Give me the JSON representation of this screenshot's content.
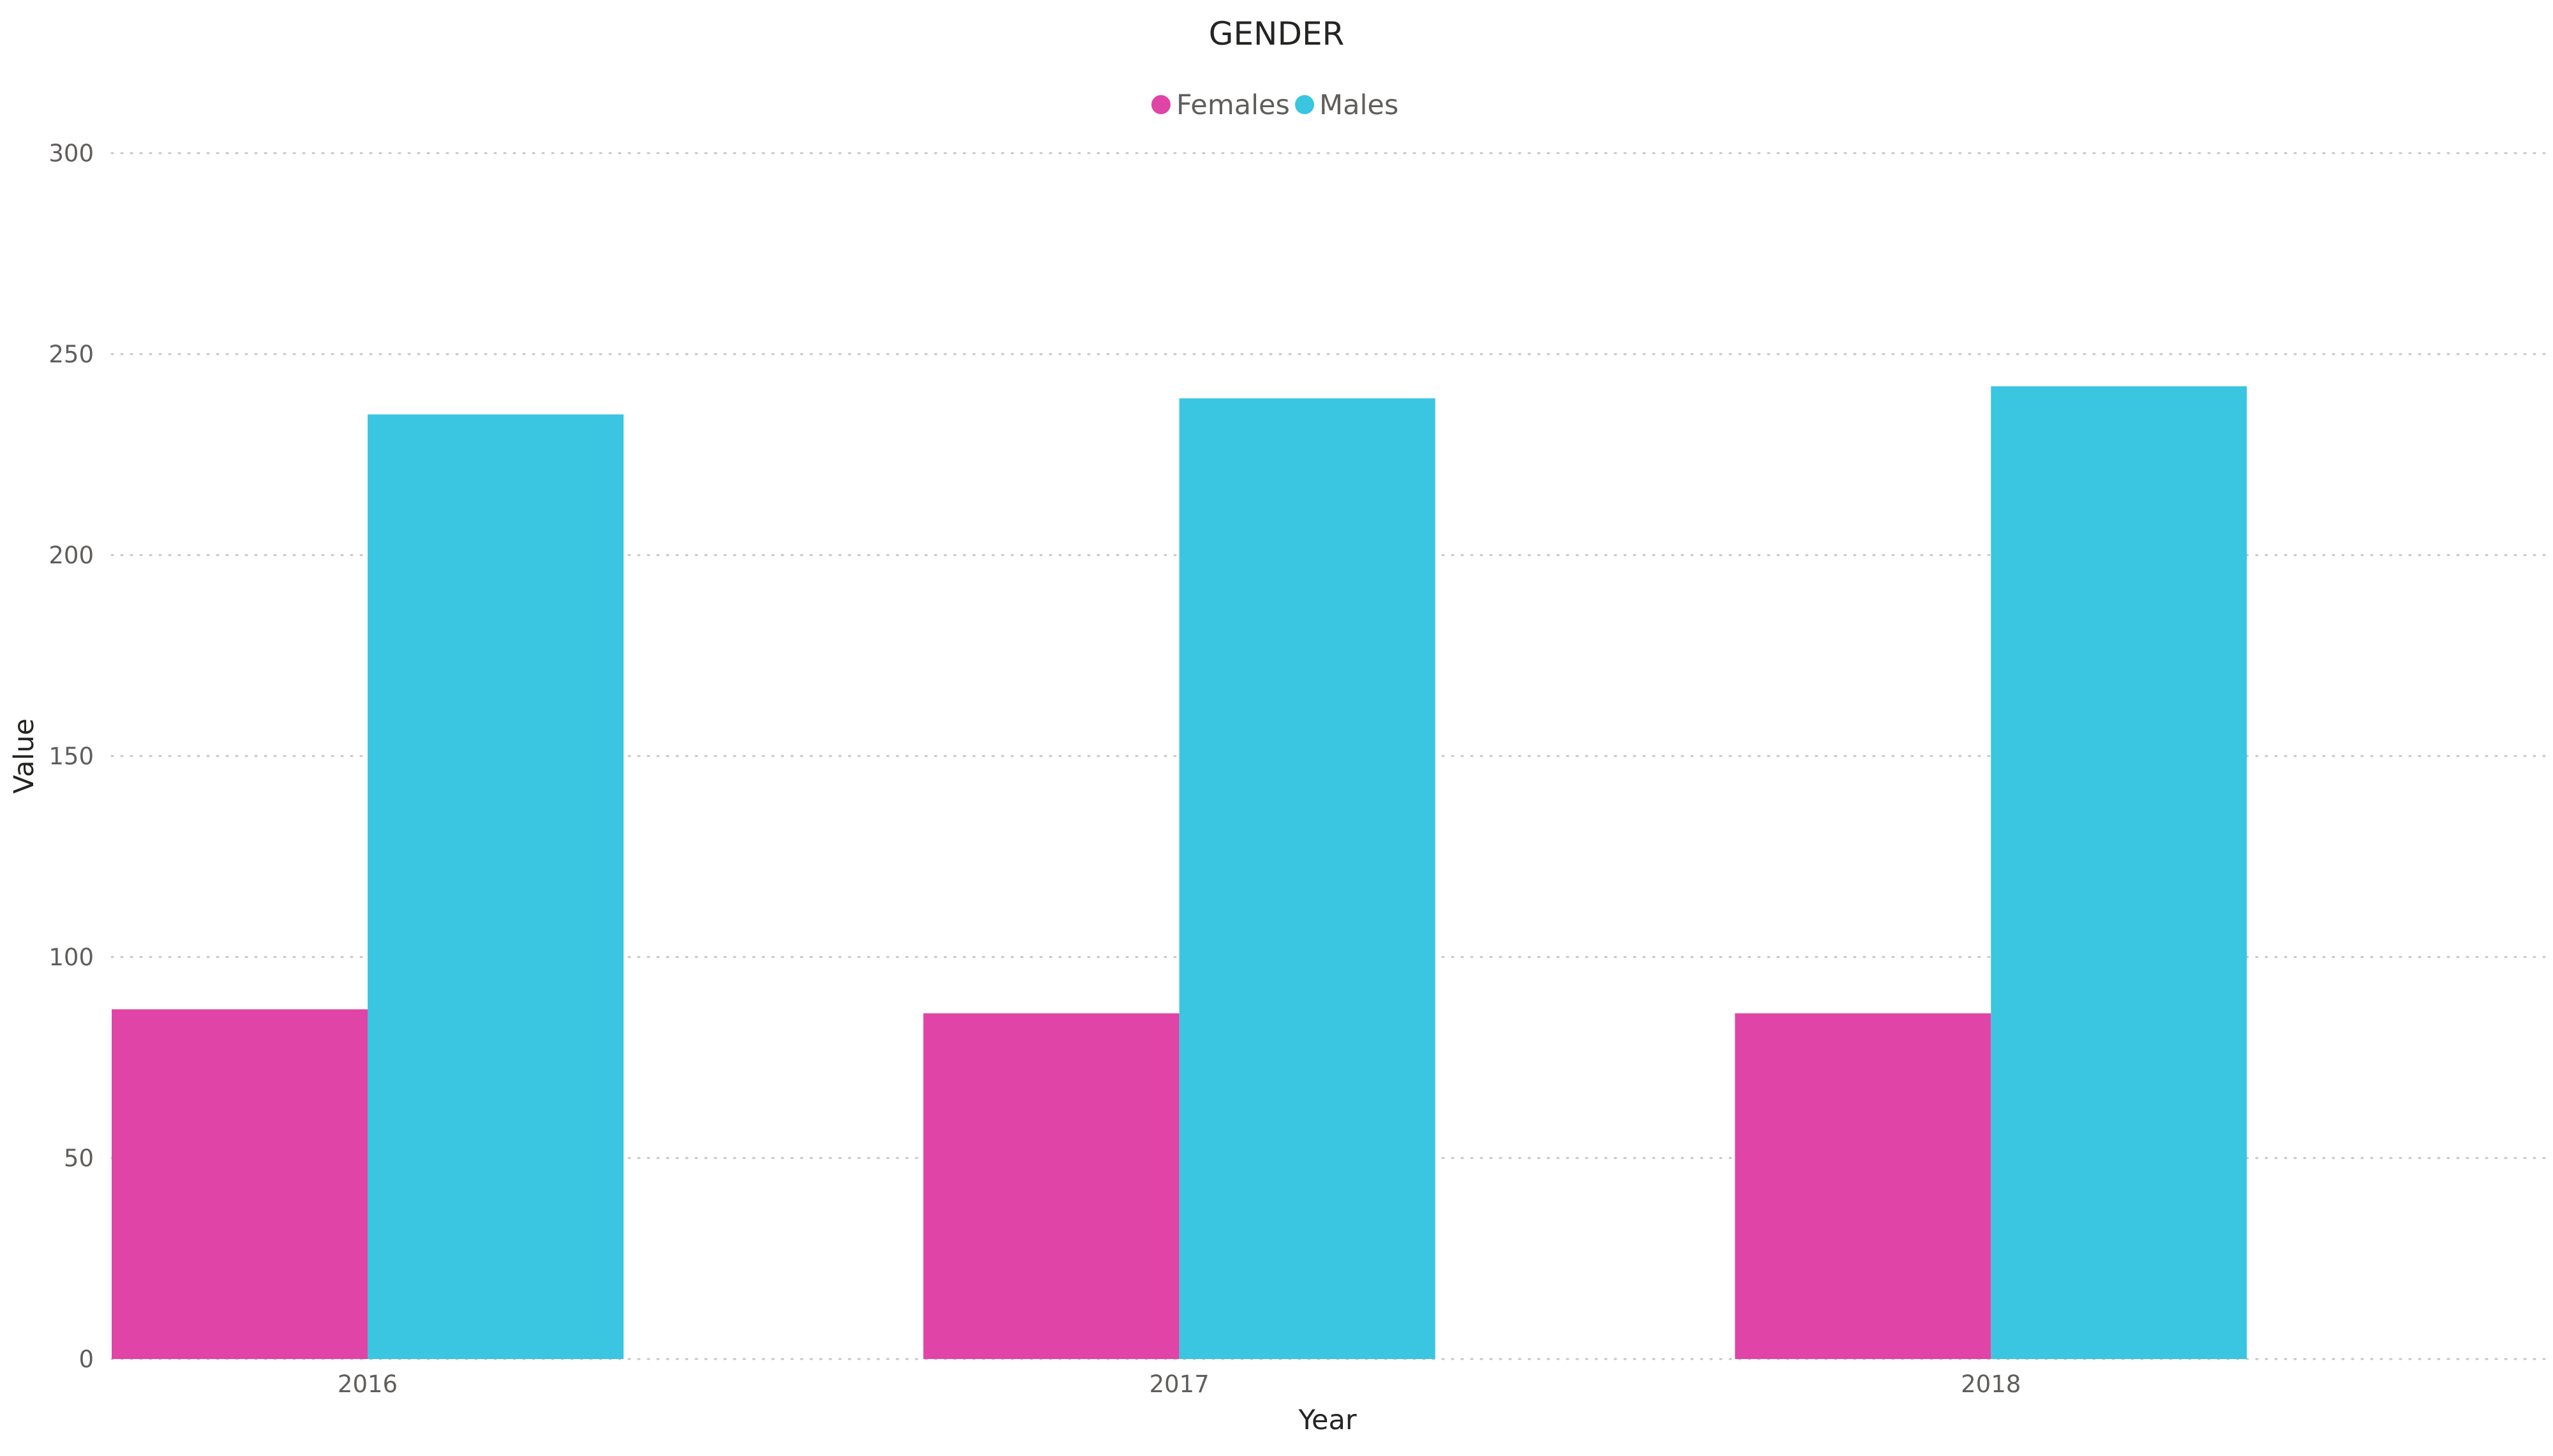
{
  "chart_data": {
    "type": "bar",
    "title": "GENDER",
    "xlabel": "Year",
    "ylabel": "Value",
    "categories": [
      "2016",
      "2017",
      "2018"
    ],
    "series": [
      {
        "name": "Females",
        "color": "#E044A7",
        "values": [
          87,
          86,
          86
        ]
      },
      {
        "name": "Males",
        "color": "#3AC5E1",
        "values": [
          235,
          239,
          242
        ]
      }
    ],
    "ylim": [
      0,
      300
    ],
    "yticks": [
      "0",
      "50",
      "100",
      "150",
      "200",
      "250",
      "300"
    ],
    "grid": true,
    "legend_position": "top-center"
  }
}
